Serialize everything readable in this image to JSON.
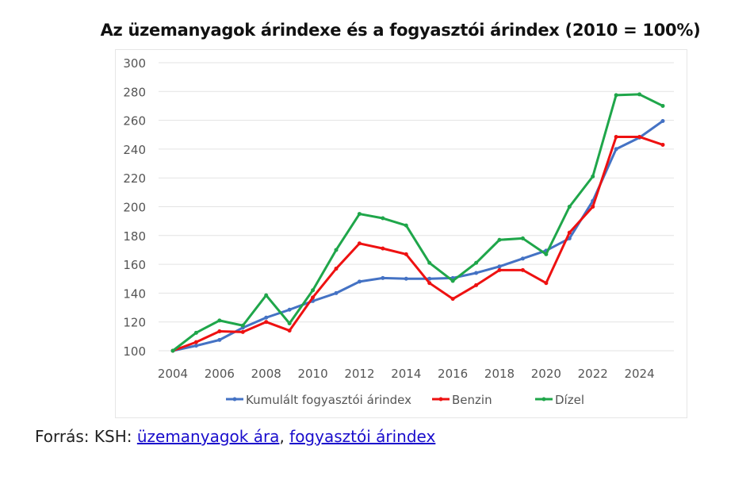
{
  "chart_data": {
    "type": "line",
    "title": "Az üzemanyagok árindexe és a fogyasztói árindex (2010 = 100%)",
    "x": [
      2004,
      2005,
      2006,
      2007,
      2008,
      2009,
      2010,
      2011,
      2012,
      2013,
      2014,
      2015,
      2016,
      2017,
      2018,
      2019,
      2020,
      2021,
      2022,
      2023,
      2024,
      2025
    ],
    "xticks": [
      "2004",
      "2006",
      "2008",
      "2010",
      "2012",
      "2014",
      "2016",
      "2018",
      "2020",
      "2022",
      "2024"
    ],
    "yticks": [
      "100",
      "120",
      "140",
      "160",
      "180",
      "200",
      "220",
      "240",
      "260",
      "280",
      "300"
    ],
    "ylim": [
      100,
      300
    ],
    "grid": true,
    "legend": "bottom",
    "series": [
      {
        "name": "Kumulált fogyasztói árindex",
        "color": "#4472c4",
        "values": [
          100,
          103.5,
          107.5,
          116,
          123,
          128.5,
          134.5,
          140,
          148,
          150.5,
          150,
          150,
          150.5,
          154,
          158.5,
          164,
          169.5,
          178,
          204,
          240,
          248,
          259.5
        ]
      },
      {
        "name": "Benzin",
        "color": "#ee1111",
        "values": [
          100,
          106,
          113.5,
          113,
          120,
          114,
          137,
          157,
          174.5,
          171,
          167,
          147,
          136,
          145.5,
          156,
          156,
          147,
          182,
          200,
          248.5,
          248.5,
          243
        ]
      },
      {
        "name": "Dízel",
        "color": "#1fa64a",
        "values": [
          100,
          112.5,
          121,
          117.5,
          138.5,
          119,
          142,
          170,
          195,
          192,
          187,
          161,
          148.5,
          161,
          177,
          178,
          167,
          200,
          221,
          277.5,
          278,
          270
        ]
      }
    ]
  },
  "source": {
    "prefix": "Forrás: KSH: ",
    "link1": "üzemanyagok ára",
    "sep": ", ",
    "link2": "fogyasztói árindex"
  }
}
